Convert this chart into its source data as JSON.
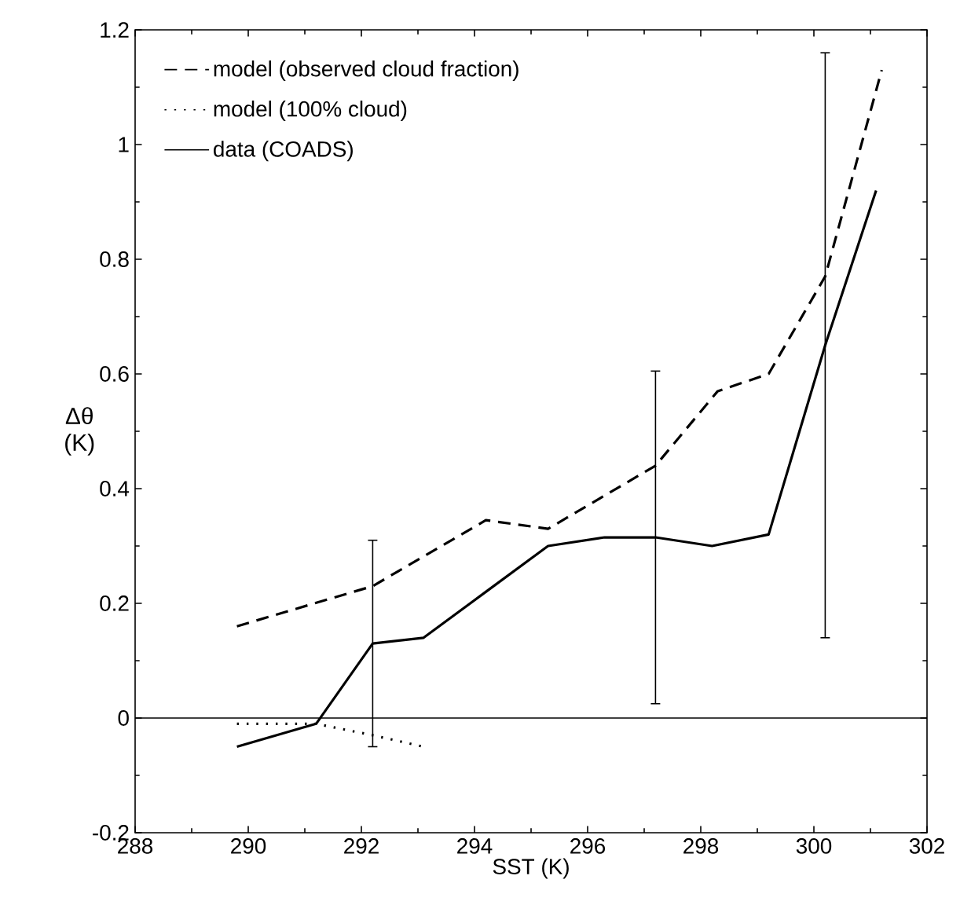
{
  "chart_data": {
    "type": "line",
    "xlabel": "SST (K)",
    "ylabel": "Δθ (K)",
    "xlim": [
      288,
      302
    ],
    "ylim": [
      -0.2,
      1.2
    ],
    "xticks": [
      288,
      290,
      292,
      294,
      296,
      298,
      300,
      302
    ],
    "yticks": [
      -0.2,
      0,
      0.2,
      0.4,
      0.6,
      0.8,
      1,
      1.2
    ],
    "legend": "top left",
    "grid": false,
    "marker": "none",
    "ref_lines": [
      {
        "axis": "y",
        "value": 0,
        "color": "#000000",
        "line_style": "solid"
      }
    ],
    "series": [
      {
        "name": "model (observed cloud fraction)",
        "color": "#000000",
        "line_style": "dashed",
        "x": [
          289.8,
          292.2,
          294.2,
          295.3,
          297.2,
          298.3,
          299.2,
          300.2,
          301.2
        ],
        "values": [
          0.16,
          0.23,
          0.345,
          0.33,
          0.44,
          0.57,
          0.6,
          0.77,
          1.13
        ]
      },
      {
        "name": "model (100% cloud)",
        "color": "#000000",
        "line_style": "dotted",
        "x": [
          289.8,
          291.2,
          292.2,
          293.1
        ],
        "values": [
          -0.01,
          -0.01,
          -0.03,
          -0.05
        ]
      },
      {
        "name": "data (COADS)",
        "color": "#000000",
        "line_style": "solid",
        "x": [
          289.8,
          291.2,
          292.2,
          293.1,
          294.2,
          295.3,
          296.3,
          297.2,
          298.2,
          299.2,
          300.2,
          301.1
        ],
        "values": [
          -0.05,
          -0.01,
          0.13,
          0.14,
          0.22,
          0.3,
          0.315,
          0.315,
          0.3,
          0.32,
          0.65,
          0.92
        ],
        "errors": [
          null,
          null,
          0.18,
          null,
          null,
          null,
          null,
          0.29,
          null,
          null,
          0.51,
          null
        ]
      }
    ]
  }
}
